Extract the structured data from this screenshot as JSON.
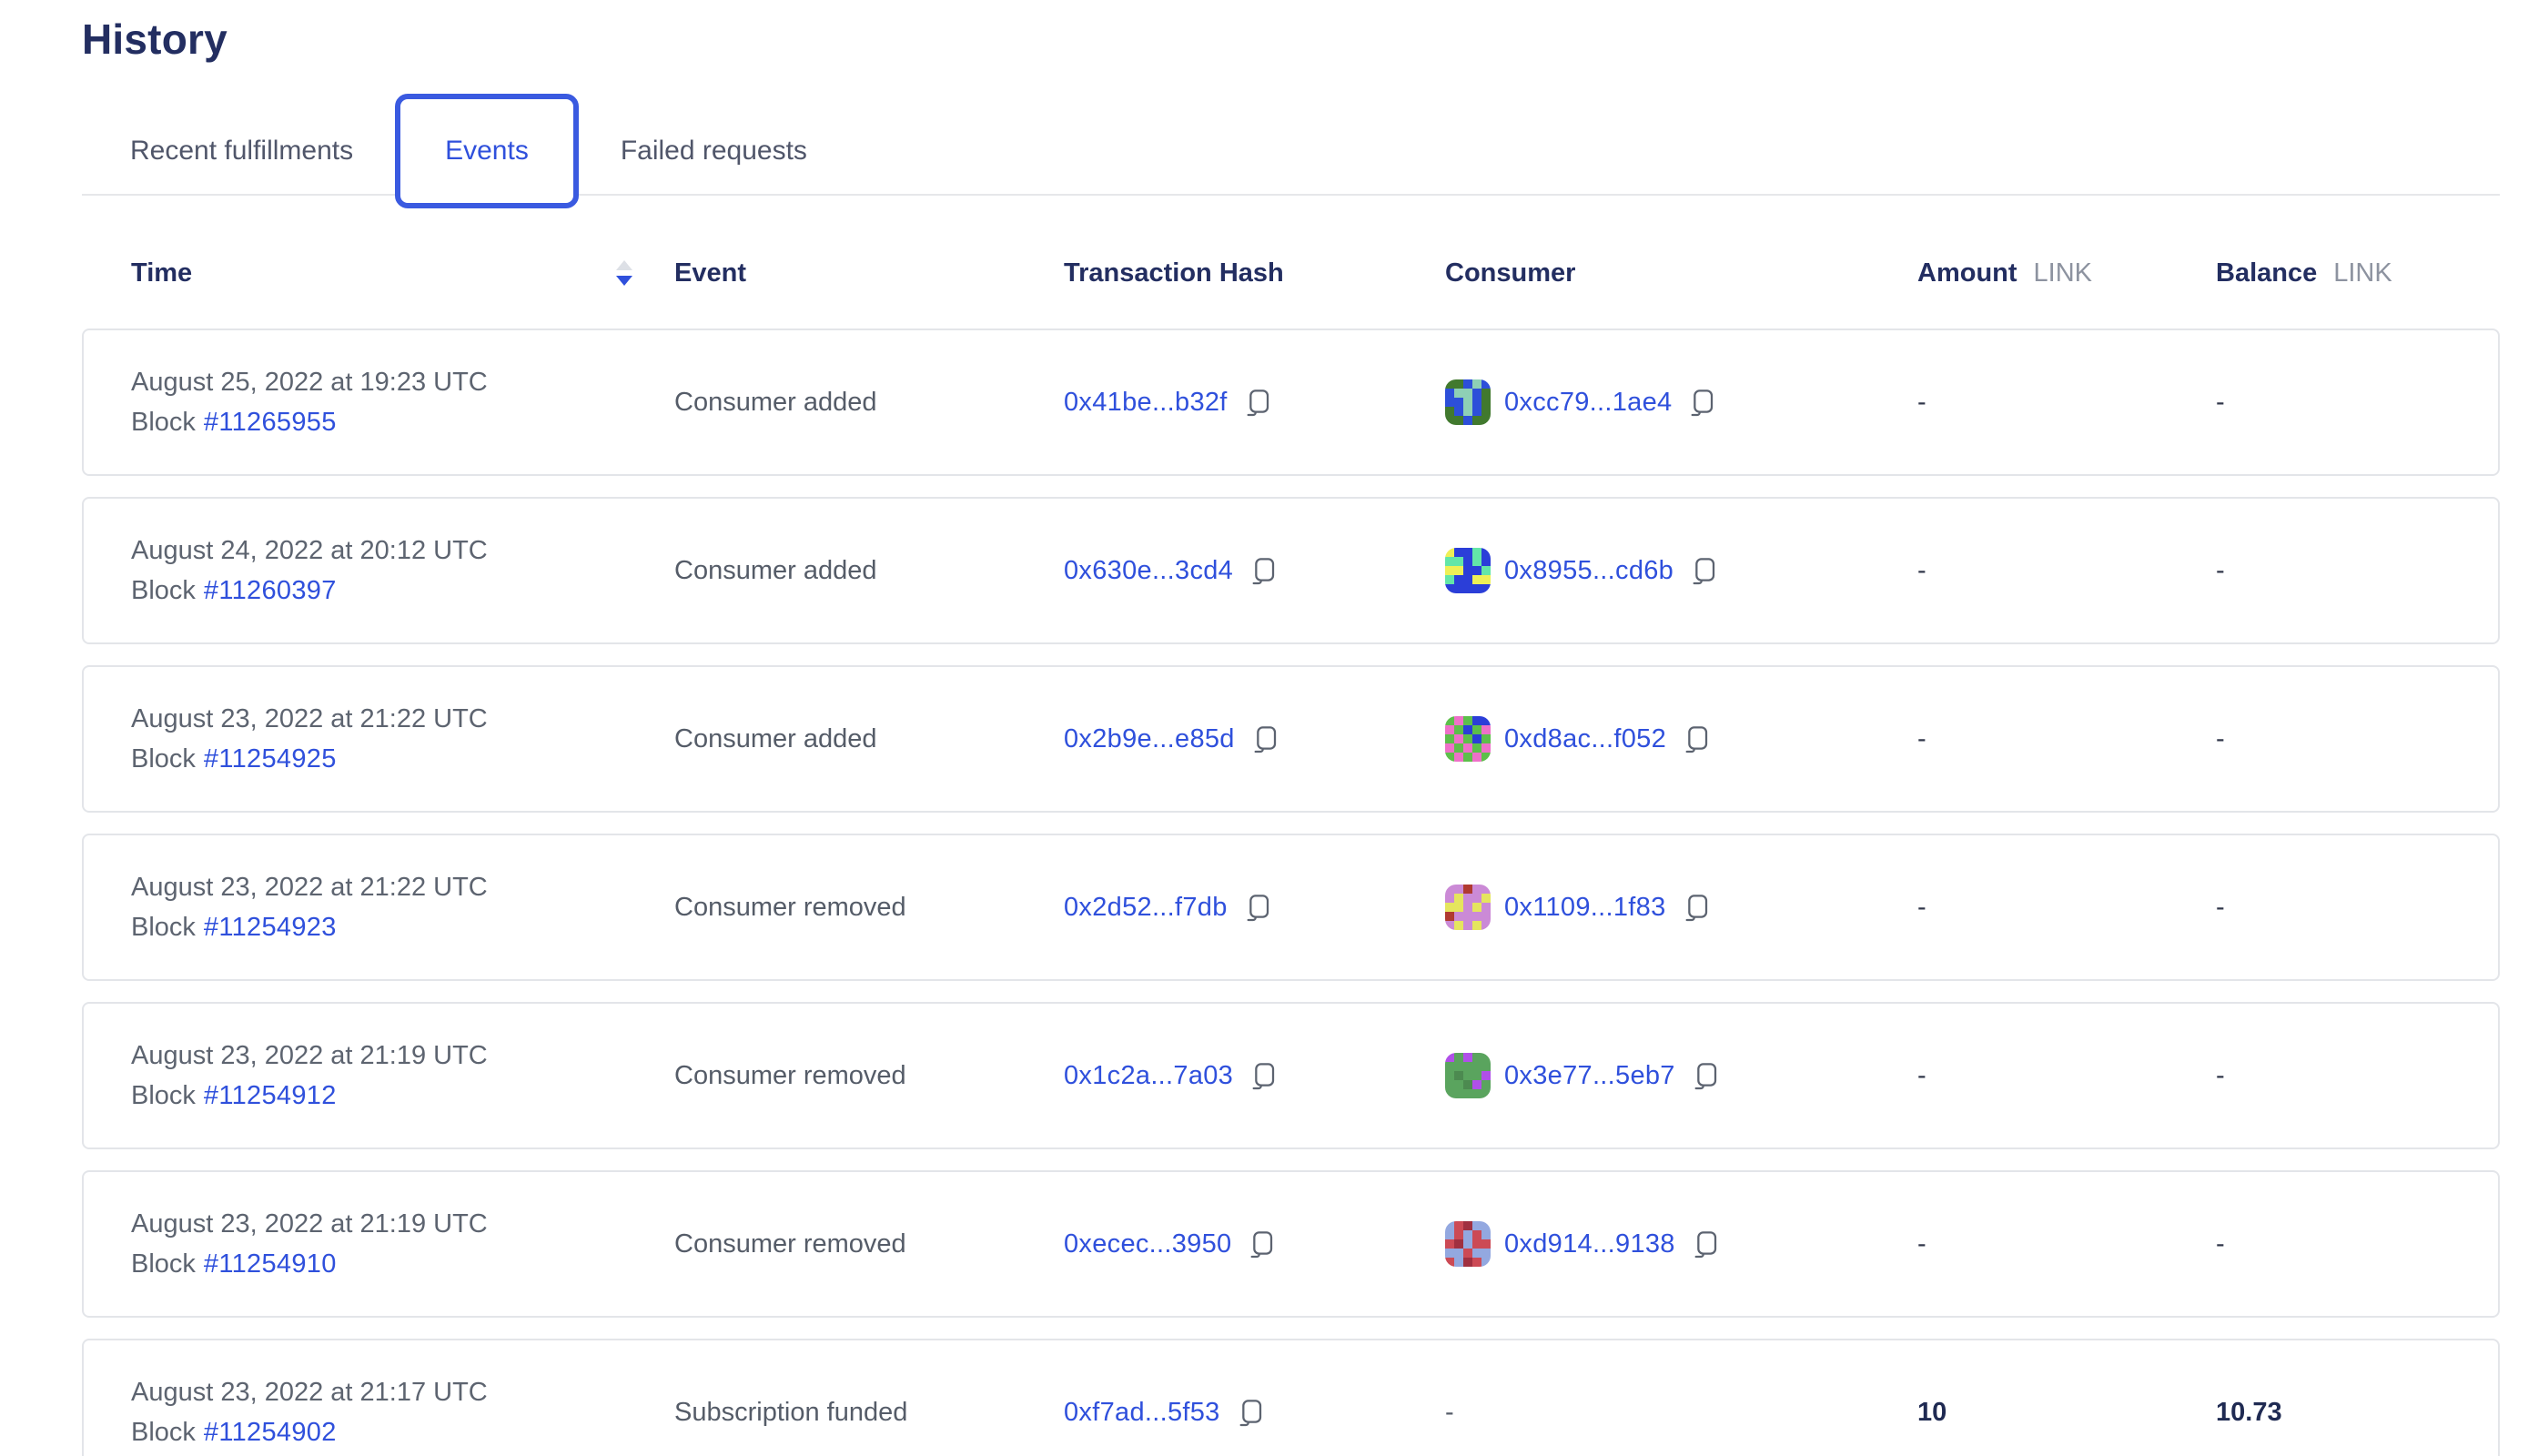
{
  "page": {
    "title": "History"
  },
  "colors": {
    "accent_blue": "#2f50dc",
    "tab_border_blue": "#3a5ae0",
    "heading_navy": "#232e61",
    "muted_gray": "#5d6470",
    "unit_gray": "#8d93a0",
    "card_border": "#e3e5e9"
  },
  "tabs": [
    {
      "label": "Recent fulfillments",
      "active": false
    },
    {
      "label": "Events",
      "active": true
    },
    {
      "label": "Failed requests",
      "active": false
    }
  ],
  "table": {
    "headers": {
      "time": "Time",
      "event": "Event",
      "tx_hash": "Transaction Hash",
      "consumer": "Consumer",
      "amount": "Amount",
      "balance": "Balance",
      "unit": "LINK"
    },
    "rows": [
      {
        "date": "August 25, 2022 at 19:23 UTC",
        "block_label": "Block",
        "block_number": "#11265955",
        "event": "Consumer added",
        "tx_hash": "0x41be...b32f",
        "consumer": "0xcc79...1ae4",
        "amount": "-",
        "balance": "-",
        "identicon": {
          "palette": {
            "G": "#41792e",
            "B": "#2d4fd9",
            "T": "#8ed0b5"
          },
          "pattern": "GGBTBBTTBGBBTBGGBTBGGGBGG"
        }
      },
      {
        "date": "August 24, 2022 at 20:12 UTC",
        "block_label": "Block",
        "block_number": "#11260397",
        "event": "Consumer added",
        "tx_hash": "0x630e...3cd4",
        "consumer": "0x8955...cd6b",
        "amount": "-",
        "balance": "-",
        "identicon": {
          "palette": {
            "B": "#2b3ed8",
            "Y": "#eef056",
            "T": "#63e6a8"
          },
          "pattern": "YBBTBTTBTBYYBBTTBBYYBBBBB"
        }
      },
      {
        "date": "August 23, 2022 at 21:22 UTC",
        "block_label": "Block",
        "block_number": "#11254925",
        "event": "Consumer added",
        "tx_hash": "0x2b9e...e85d",
        "consumer": "0xd8ac...f052",
        "amount": "-",
        "balance": "-",
        "identicon": {
          "palette": {
            "G": "#5cbf4a",
            "P": "#ee70c8",
            "B": "#2b3ed8"
          },
          "pattern": "GPGBBPGBGPGPGBGPGPGPGPGPG"
        }
      },
      {
        "date": "August 23, 2022 at 21:22 UTC",
        "block_label": "Block",
        "block_number": "#11254923",
        "event": "Consumer removed",
        "tx_hash": "0x2d52...f7db",
        "consumer": "0x1109...1f83",
        "amount": "-",
        "balance": "-",
        "identicon": {
          "palette": {
            "P": "#cb8ad6",
            "Y": "#e5e55e",
            "R": "#b03a30"
          },
          "pattern": "PPRPPPYPPYYYPYPRPPPPPYPYP"
        }
      },
      {
        "date": "August 23, 2022 at 21:19 UTC",
        "block_label": "Block",
        "block_number": "#11254912",
        "event": "Consumer removed",
        "tx_hash": "0x1c2a...7a03",
        "consumer": "0x3e77...5eb7",
        "amount": "-",
        "balance": "-",
        "identicon": {
          "palette": {
            "G": "#5aa45e",
            "D": "#4c8a50",
            "P": "#b050e8"
          },
          "pattern": "PGPGGGGGGGGDGGPGGDPGGGGGG"
        }
      },
      {
        "date": "August 23, 2022 at 21:19 UTC",
        "block_label": "Block",
        "block_number": "#11254910",
        "event": "Consumer removed",
        "tx_hash": "0xecec...3950",
        "consumer": "0xd914...9138",
        "amount": "-",
        "balance": "-",
        "identicon": {
          "palette": {
            "L": "#93a8e0",
            "R": "#cc4a55",
            "D": "#a03040"
          },
          "pattern": "LRDLLLRLRLRDLRRLLRLLRLDRL"
        }
      },
      {
        "date": "August 23, 2022 at 21:17 UTC",
        "block_label": "Block",
        "block_number": "#11254902",
        "event": "Subscription funded",
        "tx_hash": "0xf7ad...5f53",
        "consumer": "-",
        "amount": "10",
        "balance": "10.73",
        "identicon": null
      }
    ]
  }
}
